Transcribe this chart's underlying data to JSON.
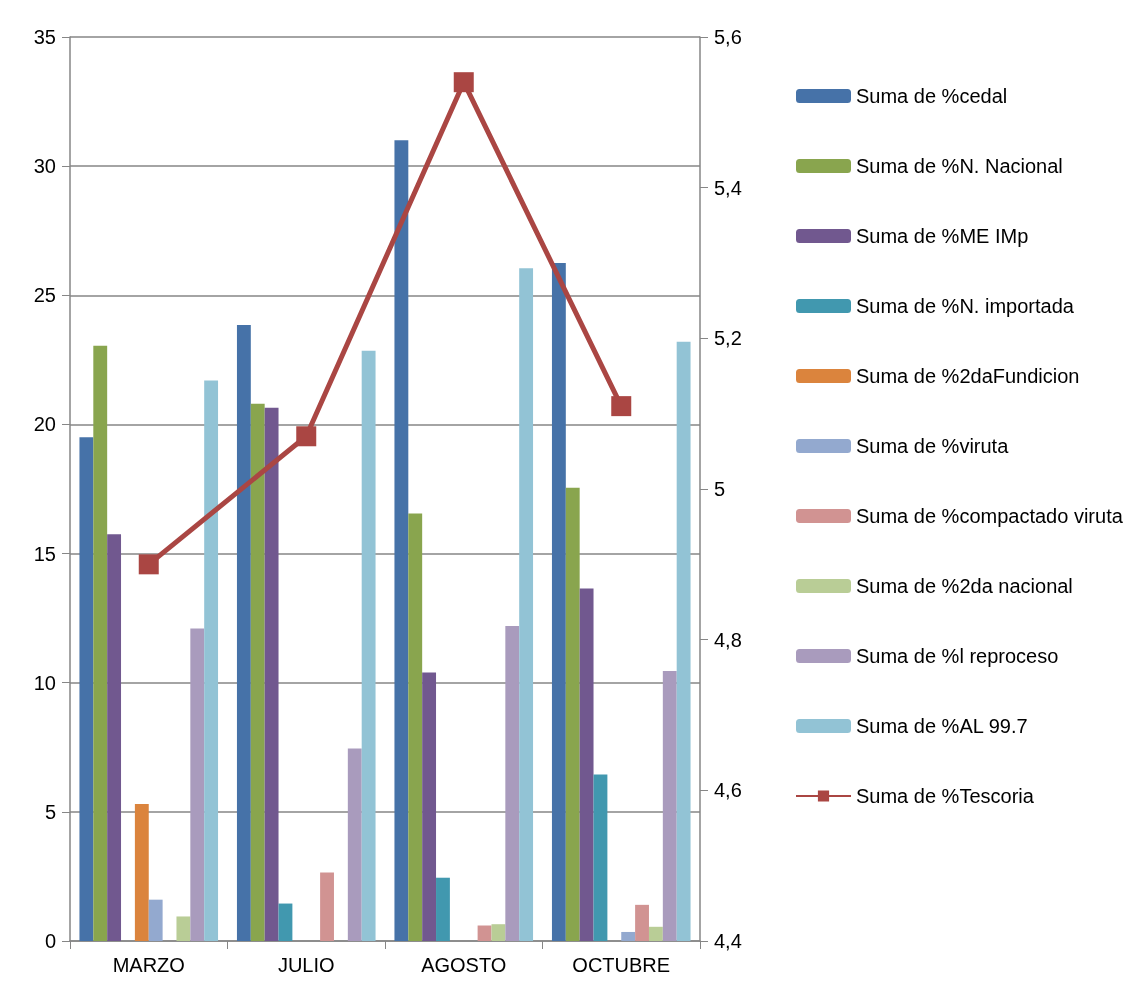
{
  "chart_data": {
    "type": "bar",
    "categories": [
      "MARZO",
      "JULIO",
      "AGOSTO",
      "OCTUBRE"
    ],
    "series": [
      {
        "name": "Suma de %cedal",
        "color": "#4672a8",
        "values": [
          19.5,
          23.85,
          31.0,
          26.25
        ]
      },
      {
        "name": "Suma de %N. Nacional",
        "color": "#89a54e",
        "values": [
          23.05,
          20.8,
          16.55,
          17.55
        ]
      },
      {
        "name": "Suma de %ME IMp",
        "color": "#71588f",
        "values": [
          15.75,
          20.65,
          10.4,
          13.65
        ]
      },
      {
        "name": "Suma de %N. importada",
        "color": "#4198af",
        "values": [
          null,
          1.45,
          2.45,
          6.45
        ]
      },
      {
        "name": "Suma de %2daFundicion",
        "color": "#db843d",
        "values": [
          5.3,
          null,
          null,
          null
        ]
      },
      {
        "name": "Suma de %viruta",
        "color": "#93a9cf",
        "values": [
          1.6,
          null,
          null,
          0.35
        ]
      },
      {
        "name": "Suma de %compactado viruta",
        "color": "#d19392",
        "values": [
          null,
          2.65,
          0.6,
          1.4
        ]
      },
      {
        "name": "Suma de %2da nacional",
        "color": "#b9cd96",
        "values": [
          0.95,
          null,
          0.65,
          0.55
        ]
      },
      {
        "name": "Suma de %l reproceso",
        "color": "#a99bbd",
        "values": [
          12.1,
          7.45,
          12.2,
          10.45
        ]
      },
      {
        "name": "Suma de %AL 99.7",
        "color": "#92c3d5",
        "values": [
          21.7,
          22.85,
          26.05,
          23.2
        ]
      },
      {
        "name": "Suma de %Tescoria",
        "type": "line",
        "axis": "y2",
        "marker": "square",
        "color": "#aa4643",
        "values": [
          4.9,
          5.07,
          5.54,
          5.11
        ]
      }
    ],
    "ylim": [
      0,
      35
    ],
    "yticks": [
      0,
      5,
      10,
      15,
      20,
      25,
      30,
      35
    ],
    "y2lim": [
      4.4,
      5.6
    ],
    "y2ticks": [
      {
        "value": 4.4,
        "label": "4,4"
      },
      {
        "value": 4.6,
        "label": "4,6"
      },
      {
        "value": 4.8,
        "label": "4,8"
      },
      5,
      {
        "value": 5.2,
        "label": "5,2"
      },
      {
        "value": 5.4,
        "label": "5,4"
      },
      {
        "value": 5.6,
        "label": "5,6"
      }
    ],
    "grid": "y",
    "legend": "right"
  }
}
